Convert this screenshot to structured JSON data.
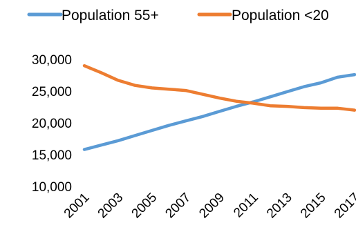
{
  "chart_data": {
    "type": "line",
    "x": [
      "2001",
      "2002",
      "2003",
      "2004",
      "2005",
      "2006",
      "2007",
      "2008",
      "2009",
      "2010",
      "2011",
      "2012",
      "2013",
      "2014",
      "2015",
      "2016",
      "2017"
    ],
    "x_tick_labels": [
      "2001",
      "2003",
      "2005",
      "2007",
      "2009",
      "2011",
      "2013",
      "2015",
      "2017"
    ],
    "y_tick_labels": [
      "30,000",
      "25,000",
      "20,000",
      "15,000",
      "10,000"
    ],
    "ylim": [
      10000,
      30000
    ],
    "y_ticks": [
      10000,
      15000,
      20000,
      25000,
      30000
    ],
    "grid": false,
    "legend_position": "top",
    "series": [
      {
        "name": "Population 55+",
        "color": "#5b9bd5",
        "values": [
          15800,
          16500,
          17200,
          18000,
          18800,
          19600,
          20300,
          21000,
          21800,
          22600,
          23300,
          24100,
          24900,
          25700,
          26300,
          27200,
          27600
        ]
      },
      {
        "name": "Population <20",
        "color": "#ed7d31",
        "values": [
          29000,
          27900,
          26700,
          25900,
          25500,
          25300,
          25100,
          24500,
          23900,
          23400,
          23100,
          22700,
          22600,
          22400,
          22300,
          22300,
          22000
        ]
      }
    ]
  }
}
